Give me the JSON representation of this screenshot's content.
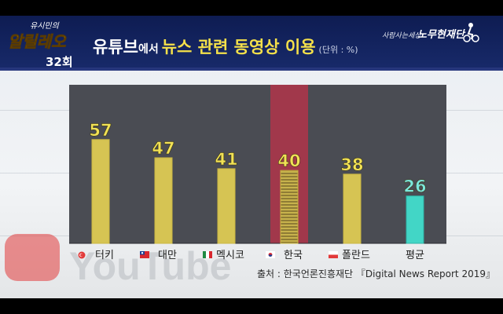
{
  "header": {
    "show_logo_small": "유시민의",
    "show_logo_big": "알릴레오",
    "episode": "32회",
    "title_part1": "유튜브",
    "title_part2": "에서",
    "title_part3": "뉴스 관련 동영상 이용",
    "unit": "(단위 : %)",
    "foundation_tagline": "사람사는세상",
    "foundation_name": "노무현재단"
  },
  "watermark": {
    "brand": "YouTube"
  },
  "colors": {
    "bar_fill": "#d6c453",
    "bar_stroke": "#c9b640",
    "highlight_bar_fill": "#c7b24c",
    "highlight_column": "#b0354a",
    "average_bar_fill": "#42d6c6",
    "value_label": "#f2e256",
    "average_value_label": "#7be6dc",
    "plot_background": "#4a4c53",
    "header_background": "#14245e"
  },
  "chart_data": {
    "type": "bar",
    "title": "유튜브에서 뉴스 관련 동영상 이용",
    "unit": "(단위 : %)",
    "categories": [
      "터키",
      "대만",
      "멕시코",
      "한국",
      "폴란드",
      "평균"
    ],
    "flags": [
      "turkey-flag-icon",
      "taiwan-flag-icon",
      "mexico-flag-icon",
      "korea-flag-icon",
      "poland-flag-icon",
      ""
    ],
    "values": [
      57,
      47,
      41,
      40,
      38,
      26
    ],
    "value_labels": [
      "57",
      "47",
      "41",
      "40",
      "38",
      "26"
    ],
    "highlight_category": "한국",
    "average_category": "평균",
    "ylim": [
      0,
      70
    ],
    "grid": false,
    "legend": "none"
  },
  "source": "출처 : 한국언론진흥재단 『Digital News Report 2019』"
}
